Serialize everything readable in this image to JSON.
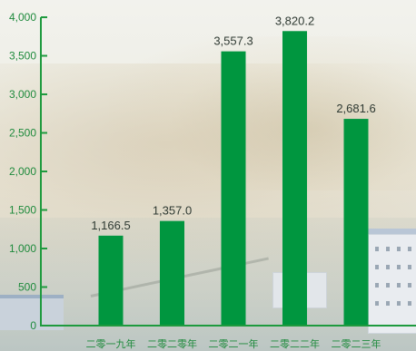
{
  "colors": {
    "bar": "#00963f",
    "axis": "#1e9a3e",
    "tick_text": "#1e8a3c",
    "data_label": "#2f3a33"
  },
  "chart_data": {
    "type": "bar",
    "categories": [
      "二零一九年",
      "二零二零年",
      "二零二一年",
      "二零二二年",
      "二零二三年"
    ],
    "values": [
      1166.5,
      1357.0,
      3557.3,
      3820.2,
      2681.6
    ],
    "data_labels": [
      "1,166.5",
      "1,357.0",
      "3,557.3",
      "3,820.2",
      "2,681.6"
    ],
    "y_ticks": [
      0,
      500,
      1000,
      1500,
      2000,
      2500,
      3000,
      3500,
      4000
    ],
    "y_tick_labels": [
      "0",
      "500",
      "1,000",
      "1,500",
      "2,000",
      "2,500",
      "3,000",
      "3,500",
      "4,000"
    ],
    "ylim": [
      0,
      4000
    ],
    "title": "",
    "xlabel": "",
    "ylabel": "",
    "grid": false,
    "legend": "none"
  }
}
